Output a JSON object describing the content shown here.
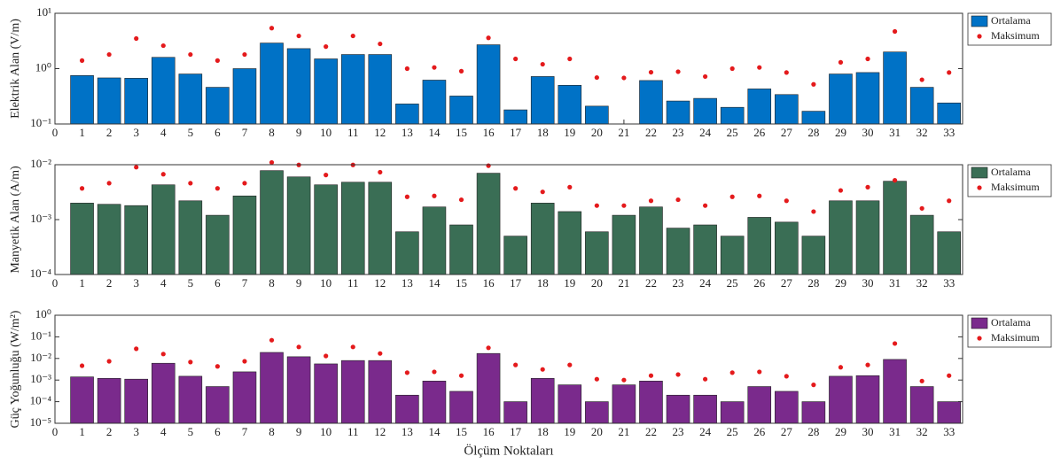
{
  "chart_data": [
    {
      "type": "bar",
      "ylabel": "Elektrik Alan (V/m)",
      "yscale": "log",
      "ylim": [
        0.1,
        10
      ],
      "yticks": [
        {
          "value": 0.1,
          "label": "10⁻¹"
        },
        {
          "value": 1,
          "label": "10⁰"
        },
        {
          "value": 10,
          "label": "10¹"
        }
      ],
      "xlim": [
        0,
        33.5
      ],
      "xticks": [
        0,
        1,
        2,
        3,
        4,
        5,
        6,
        7,
        8,
        9,
        10,
        11,
        12,
        13,
        14,
        15,
        16,
        17,
        18,
        19,
        20,
        21,
        22,
        23,
        24,
        25,
        26,
        27,
        28,
        29,
        30,
        31,
        32,
        33
      ],
      "x": [
        1,
        2,
        3,
        4,
        5,
        6,
        7,
        8,
        9,
        10,
        11,
        12,
        13,
        14,
        15,
        16,
        17,
        18,
        19,
        20,
        21,
        22,
        23,
        24,
        25,
        26,
        27,
        28,
        29,
        30,
        31,
        32,
        33
      ],
      "legend": "outside-right",
      "series": [
        {
          "name": "Ortalama",
          "color": "#0072c6",
          "values": [
            0.75,
            0.68,
            0.67,
            1.6,
            0.8,
            0.46,
            1.0,
            2.9,
            2.3,
            1.5,
            1.8,
            1.8,
            0.23,
            0.62,
            0.32,
            2.7,
            0.18,
            0.72,
            0.5,
            0.21,
            null,
            0.61,
            0.26,
            0.29,
            0.2,
            0.43,
            0.34,
            0.17,
            0.8,
            0.85,
            2.0,
            0.46,
            0.24
          ]
        },
        {
          "name": "Maksimum",
          "color": "#e41a1c",
          "marker": "dot",
          "values": [
            1.4,
            1.8,
            3.5,
            2.6,
            1.8,
            1.4,
            1.8,
            5.4,
            3.9,
            2.5,
            3.9,
            2.8,
            1.0,
            1.05,
            0.9,
            3.6,
            1.5,
            1.2,
            1.5,
            0.69,
            0.68,
            0.86,
            0.88,
            0.72,
            1.0,
            1.05,
            0.85,
            0.52,
            1.3,
            1.5,
            4.7,
            0.63,
            0.85
          ]
        }
      ]
    },
    {
      "type": "bar",
      "ylabel": "Manyetik Alan (A/m)",
      "yscale": "log",
      "ylim": [
        0.0001,
        0.01
      ],
      "yticks": [
        {
          "value": 0.0001,
          "label": "10⁻⁴"
        },
        {
          "value": 0.001,
          "label": "10⁻³"
        },
        {
          "value": 0.01,
          "label": "10⁻²"
        }
      ],
      "xlim": [
        0,
        33.5
      ],
      "xticks": [
        0,
        1,
        2,
        3,
        4,
        5,
        6,
        7,
        8,
        9,
        10,
        11,
        12,
        13,
        14,
        15,
        16,
        17,
        18,
        19,
        20,
        21,
        22,
        23,
        24,
        25,
        26,
        27,
        28,
        29,
        30,
        31,
        32,
        33
      ],
      "x": [
        1,
        2,
        3,
        4,
        5,
        6,
        7,
        8,
        9,
        10,
        11,
        12,
        13,
        14,
        15,
        16,
        17,
        18,
        19,
        20,
        21,
        22,
        23,
        24,
        25,
        26,
        27,
        28,
        29,
        30,
        31,
        32,
        33
      ],
      "legend": "outside-right",
      "series": [
        {
          "name": "Ortalama",
          "color": "#3a6e55",
          "values": [
            0.002,
            0.0019,
            0.0018,
            0.0043,
            0.0022,
            0.0012,
            0.0027,
            0.0078,
            0.006,
            0.0043,
            0.0048,
            0.0048,
            0.0006,
            0.0017,
            0.0008,
            0.007,
            0.0005,
            0.002,
            0.0014,
            0.0006,
            0.0012,
            0.0017,
            0.0007,
            0.0008,
            0.0005,
            0.0011,
            0.0009,
            0.0005,
            0.0022,
            0.0022,
            0.005,
            0.0012,
            0.0006
          ]
        },
        {
          "name": "Maksimum",
          "color": "#e41a1c",
          "marker": "dot",
          "values": [
            0.0037,
            0.0046,
            0.009,
            0.0067,
            0.0046,
            0.0037,
            0.0046,
            0.011,
            0.0099,
            0.0065,
            0.0099,
            0.0073,
            0.0026,
            0.0027,
            0.0023,
            0.0096,
            0.0037,
            0.0032,
            0.0039,
            0.0018,
            0.0018,
            0.0022,
            0.0023,
            0.0018,
            0.0026,
            0.0027,
            0.0022,
            0.0014,
            0.0034,
            0.0039,
            0.0052,
            0.0016,
            0.0022
          ]
        }
      ]
    },
    {
      "type": "bar",
      "ylabel": "Güç Yoğunluğu (W/m²)",
      "xlabel": "Ölçüm Noktaları",
      "yscale": "log",
      "ylim": [
        1e-05,
        1
      ],
      "yticks": [
        {
          "value": 1e-05,
          "label": "10⁻⁵"
        },
        {
          "value": 0.0001,
          "label": "10⁻⁴"
        },
        {
          "value": 0.001,
          "label": "10⁻³"
        },
        {
          "value": 0.01,
          "label": "10⁻²"
        },
        {
          "value": 0.1,
          "label": "10⁻¹"
        },
        {
          "value": 1,
          "label": "10⁰"
        }
      ],
      "xlim": [
        0,
        33.5
      ],
      "xticks": [
        0,
        1,
        2,
        3,
        4,
        5,
        6,
        7,
        8,
        9,
        10,
        11,
        12,
        13,
        14,
        15,
        16,
        17,
        18,
        19,
        20,
        21,
        22,
        23,
        24,
        25,
        26,
        27,
        28,
        29,
        30,
        31,
        32,
        33
      ],
      "x": [
        1,
        2,
        3,
        4,
        5,
        6,
        7,
        8,
        9,
        10,
        11,
        12,
        13,
        14,
        15,
        16,
        17,
        18,
        19,
        20,
        21,
        22,
        23,
        24,
        25,
        26,
        27,
        28,
        29,
        30,
        31,
        32,
        33
      ],
      "legend": "outside-right",
      "series": [
        {
          "name": "Ortalama",
          "color": "#7a2a8c",
          "values": [
            0.0014,
            0.0012,
            0.0011,
            0.006,
            0.0015,
            0.0005,
            0.0024,
            0.019,
            0.012,
            0.0056,
            0.008,
            0.008,
            0.0002,
            0.0009,
            0.0003,
            0.017,
            0.0001,
            0.0012,
            0.0006,
            0.0001,
            0.0006,
            0.0009,
            0.0002,
            0.0002,
            0.0001,
            0.0005,
            0.0003,
            0.0001,
            0.0015,
            0.0016,
            0.009,
            0.0005,
            0.0001
          ]
        },
        {
          "name": "Maksimum",
          "color": "#e41a1c",
          "marker": "dot",
          "values": [
            0.0046,
            0.0074,
            0.028,
            0.016,
            0.0068,
            0.0043,
            0.0074,
            0.07,
            0.034,
            0.013,
            0.034,
            0.017,
            0.0022,
            0.0024,
            0.0016,
            0.031,
            0.005,
            0.0031,
            0.005,
            0.0011,
            0.001,
            0.0016,
            0.0018,
            0.0011,
            0.0022,
            0.0024,
            0.0015,
            0.0006,
            0.0039,
            0.005,
            0.049,
            0.0009,
            0.0016
          ]
        }
      ]
    }
  ]
}
